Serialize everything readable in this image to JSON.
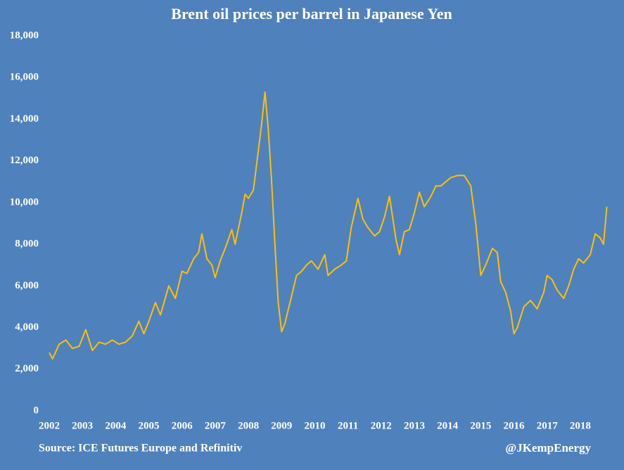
{
  "chart_data": {
    "type": "line",
    "title": "Brent oil prices per barrel in Japanese Yen",
    "source": "Source: ICE Futures Europe and Refinitiv",
    "credit": "@JKempEnergy",
    "background": "#4f81bd",
    "grid": false,
    "xlim": [
      2002,
      2018.85
    ],
    "xticks": [
      2002,
      2003,
      2004,
      2005,
      2006,
      2007,
      2008,
      2009,
      2010,
      2011,
      2012,
      2013,
      2014,
      2015,
      2016,
      2017,
      2018
    ],
    "ylim": [
      0,
      18000
    ],
    "yticks": [
      0,
      {
        "value": 2000,
        "label": "2,000"
      },
      {
        "value": 4000,
        "label": "4,000"
      },
      {
        "value": 6000,
        "label": "6,000"
      },
      {
        "value": 8000,
        "label": "8,000"
      },
      {
        "value": 10000,
        "label": "10,000"
      },
      {
        "value": 12000,
        "label": "12,000"
      },
      {
        "value": 14000,
        "label": "14,000"
      },
      {
        "value": 16000,
        "label": "16,000"
      },
      {
        "value": 18000,
        "label": "18,000"
      }
    ],
    "x": [
      2002.0,
      2002.1,
      2002.3,
      2002.5,
      2002.7,
      2002.9,
      2003.1,
      2003.3,
      2003.5,
      2003.7,
      2003.9,
      2004.1,
      2004.3,
      2004.5,
      2004.7,
      2004.85,
      2005.0,
      2005.2,
      2005.35,
      2005.6,
      2005.8,
      2006.0,
      2006.15,
      2006.35,
      2006.5,
      2006.6,
      2006.75,
      2006.9,
      2007.0,
      2007.15,
      2007.3,
      2007.5,
      2007.6,
      2007.8,
      2007.9,
      2008.0,
      2008.15,
      2008.3,
      2008.4,
      2008.5,
      2008.6,
      2008.7,
      2008.8,
      2008.9,
      2009.0,
      2009.1,
      2009.3,
      2009.45,
      2009.6,
      2009.75,
      2009.9,
      2010.1,
      2010.3,
      2010.4,
      2010.6,
      2010.8,
      2010.95,
      2011.1,
      2011.3,
      2011.45,
      2011.6,
      2011.8,
      2011.95,
      2012.1,
      2012.25,
      2012.45,
      2012.55,
      2012.7,
      2012.85,
      2013.0,
      2013.15,
      2013.3,
      2013.5,
      2013.65,
      2013.8,
      2013.95,
      2014.1,
      2014.3,
      2014.5,
      2014.7,
      2014.85,
      2015.0,
      2015.15,
      2015.35,
      2015.5,
      2015.6,
      2015.75,
      2015.9,
      2016.0,
      2016.1,
      2016.3,
      2016.5,
      2016.7,
      2016.9,
      2017.0,
      2017.15,
      2017.3,
      2017.5,
      2017.65,
      2017.8,
      2017.95,
      2018.1,
      2018.3,
      2018.45,
      2018.6,
      2018.7,
      2018.8
    ],
    "series": [
      {
        "name": "Brent",
        "color": "#ffc000",
        "values": [
          2800,
          2500,
          3200,
          3400,
          3000,
          3100,
          3900,
          2900,
          3300,
          3200,
          3400,
          3200,
          3300,
          3600,
          4300,
          3700,
          4300,
          5200,
          4600,
          6000,
          5400,
          6700,
          6600,
          7300,
          7600,
          8500,
          7300,
          7000,
          6400,
          7200,
          7800,
          8700,
          8000,
          9500,
          10400,
          10200,
          10600,
          12500,
          13800,
          15300,
          13500,
          11000,
          8000,
          5200,
          3800,
          4200,
          5500,
          6500,
          6700,
          7000,
          7200,
          6800,
          7500,
          6500,
          6800,
          7000,
          7200,
          8800,
          10200,
          9200,
          8800,
          8400,
          8600,
          9300,
          10300,
          8200,
          7500,
          8600,
          8700,
          9500,
          10500,
          9800,
          10300,
          10800,
          10800,
          11000,
          11200,
          11300,
          11300,
          10800,
          9000,
          6500,
          7000,
          7800,
          7600,
          6200,
          5700,
          4800,
          3700,
          4000,
          5000,
          5300,
          4900,
          5700,
          6500,
          6300,
          5800,
          5400,
          6000,
          6800,
          7300,
          7100,
          7500,
          8500,
          8300,
          8000,
          9800
        ]
      }
    ]
  }
}
